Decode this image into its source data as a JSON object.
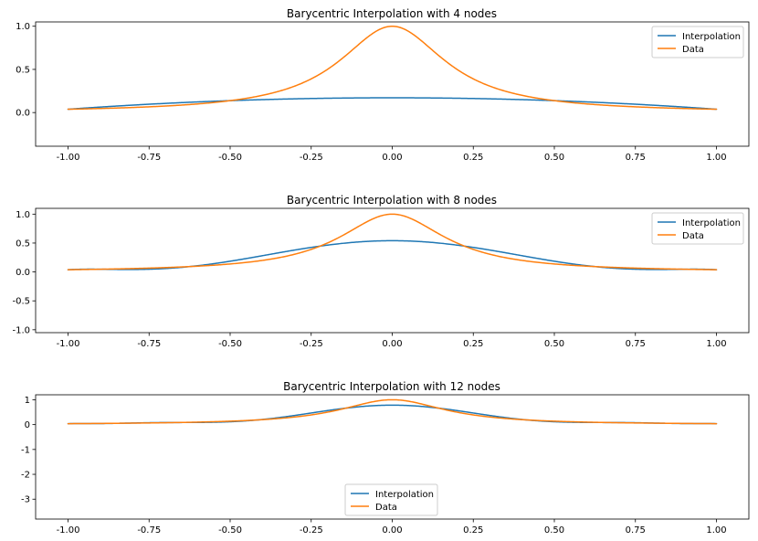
{
  "chart_data": [
    {
      "type": "line",
      "title": "Barycentric Interpolation with 4 nodes",
      "nodes": 4,
      "xlim": [
        -1.1,
        1.1
      ],
      "ylim": [
        -0.39,
        1.05
      ],
      "xticks": [
        "-1.00",
        "-0.75",
        "-0.50",
        "-0.25",
        "0.00",
        "0.25",
        "0.50",
        "0.75",
        "1.00"
      ],
      "xtick_values": [
        -1,
        -0.75,
        -0.5,
        -0.25,
        0,
        0.25,
        0.5,
        0.75,
        1
      ],
      "yticks": [
        "0.0",
        "0.5",
        "1.0"
      ],
      "ytick_values": [
        0,
        0.5,
        1
      ],
      "legend": [
        "Interpolation",
        "Data"
      ],
      "legend_position": "top-right",
      "series": [
        {
          "name": "Interpolation",
          "color": "#1f77b4",
          "function": "barycentric interpolant of 1/(1+25x^2) on 4 Chebyshev nodes"
        },
        {
          "name": "Data",
          "color": "#ff7f0e",
          "function": "1/(1+25x^2)"
        }
      ]
    },
    {
      "type": "line",
      "title": "Barycentric Interpolation with 8 nodes",
      "nodes": 8,
      "xlim": [
        -1.1,
        1.1
      ],
      "ylim": [
        -1.05,
        1.1
      ],
      "xticks": [
        "-1.00",
        "-0.75",
        "-0.50",
        "-0.25",
        "0.00",
        "0.25",
        "0.50",
        "0.75",
        "1.00"
      ],
      "xtick_values": [
        -1,
        -0.75,
        -0.5,
        -0.25,
        0,
        0.25,
        0.5,
        0.75,
        1
      ],
      "yticks": [
        "-1.0",
        "-0.5",
        "0.0",
        "0.5",
        "1.0"
      ],
      "ytick_values": [
        -1,
        -0.5,
        0,
        0.5,
        1
      ],
      "legend": [
        "Interpolation",
        "Data"
      ],
      "legend_position": "top-right",
      "series": [
        {
          "name": "Interpolation",
          "color": "#1f77b4",
          "function": "barycentric interpolant of 1/(1+25x^2) on 8 Chebyshev nodes"
        },
        {
          "name": "Data",
          "color": "#ff7f0e",
          "function": "1/(1+25x^2)"
        }
      ]
    },
    {
      "type": "line",
      "title": "Barycentric Interpolation with 12 nodes",
      "nodes": 12,
      "xlim": [
        -1.1,
        1.1
      ],
      "ylim": [
        -3.8,
        1.2
      ],
      "xticks": [
        "-1.00",
        "-0.75",
        "-0.50",
        "-0.25",
        "0.00",
        "0.25",
        "0.50",
        "0.75",
        "1.00"
      ],
      "xtick_values": [
        -1,
        -0.75,
        -0.5,
        -0.25,
        0,
        0.25,
        0.5,
        0.75,
        1
      ],
      "yticks": [
        "-3",
        "-2",
        "-1",
        "0",
        "1"
      ],
      "ytick_values": [
        -3,
        -2,
        -1,
        0,
        1
      ],
      "legend": [
        "Interpolation",
        "Data"
      ],
      "legend_position": "lower-center",
      "series": [
        {
          "name": "Interpolation",
          "color": "#1f77b4",
          "function": "barycentric interpolant of 1/(1+25x^2) on 12 Chebyshev nodes"
        },
        {
          "name": "Data",
          "color": "#ff7f0e",
          "function": "1/(1+25x^2)"
        }
      ]
    }
  ]
}
